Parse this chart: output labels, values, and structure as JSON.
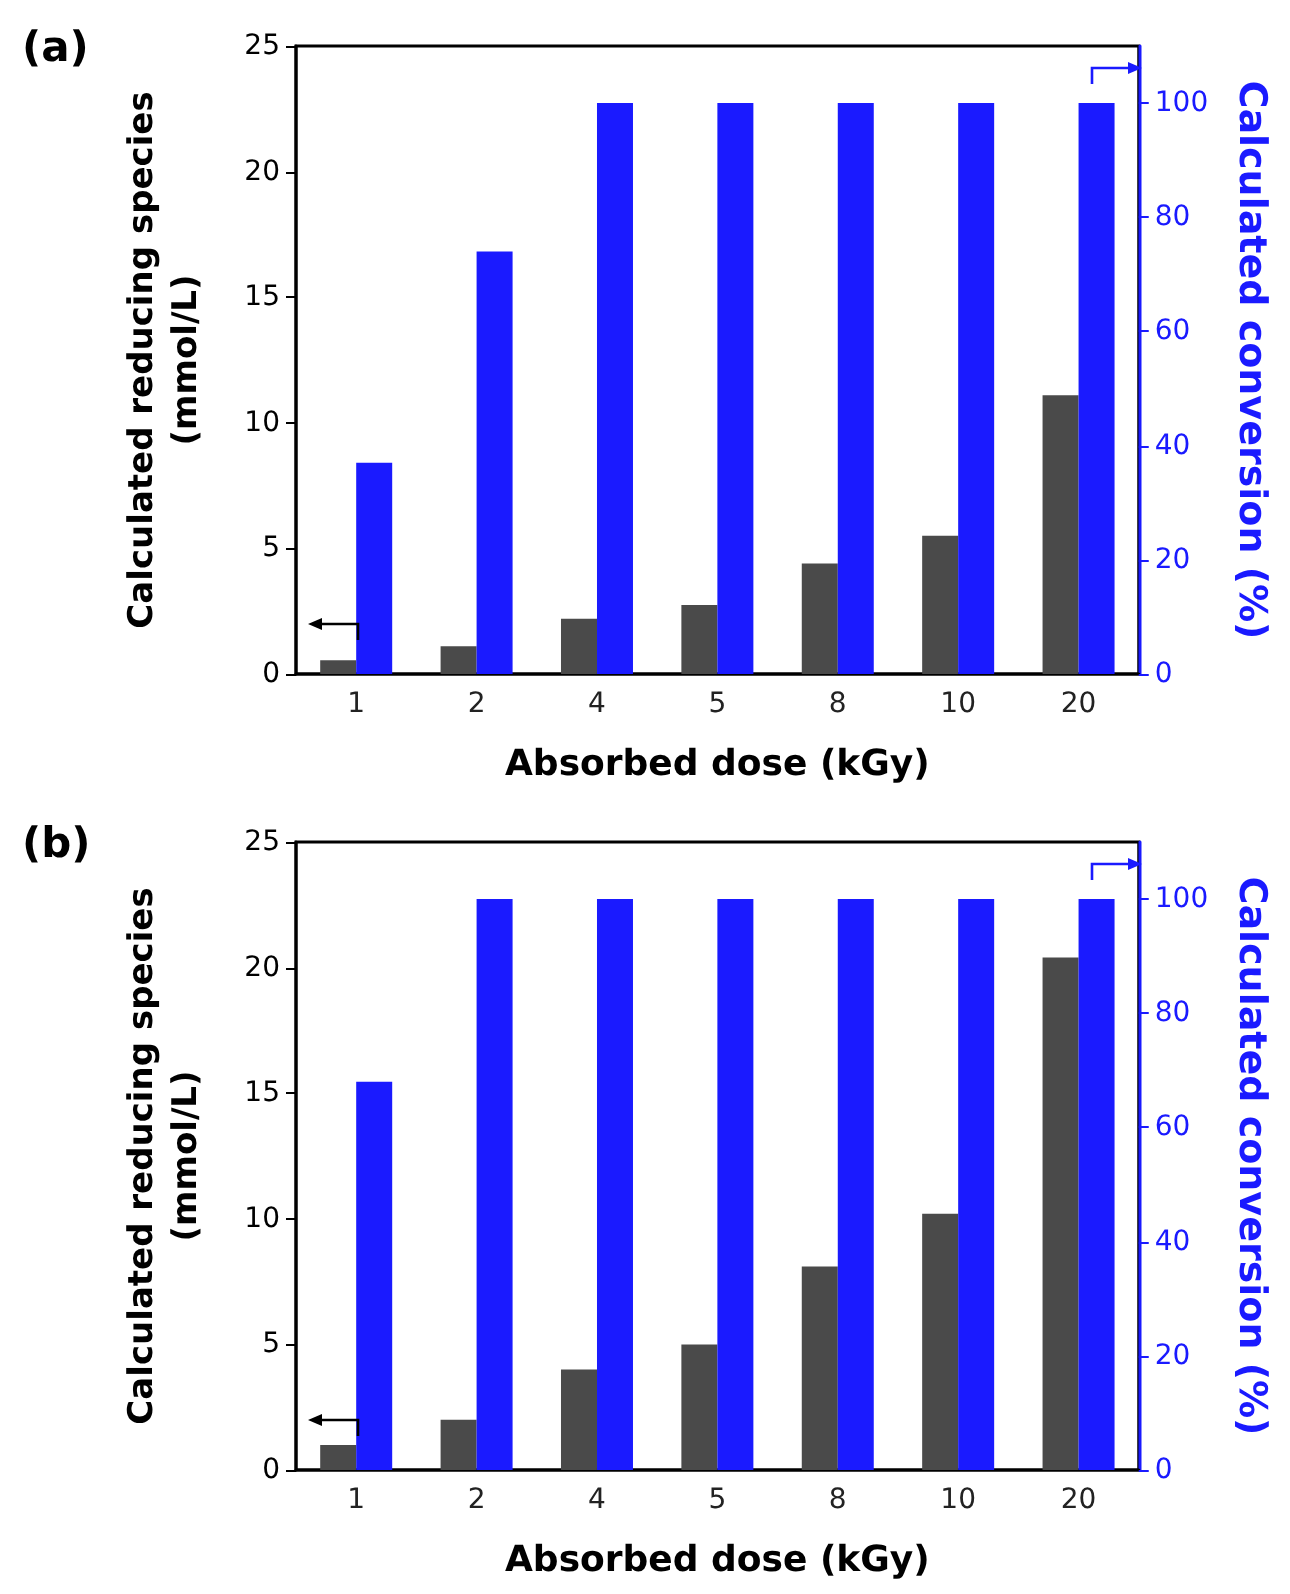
{
  "chart_data": [
    {
      "type": "bar",
      "title": "(a)",
      "xlabel": "Absorbed dose (kGy)",
      "ylabel": "Calculated reducing species\n(mmol/L)",
      "y2label": "Calculated conversion (%)",
      "categories": [
        "1",
        "2",
        "4",
        "5",
        "8",
        "10",
        "20"
      ],
      "series": [
        {
          "color": "#4a4a4a",
          "values": [
            0.55,
            1.1,
            2.2,
            2.75,
            4.4,
            5.5,
            11.1
          ]
        },
        {
          "color": "#1a1aff",
          "values": [
            37,
            74,
            100,
            100,
            100,
            100,
            100
          ],
          "axis": "y2"
        }
      ],
      "ylim": [
        0,
        25
      ],
      "yticks": [
        0,
        5,
        10,
        15,
        20,
        25
      ],
      "y2lim": [
        0,
        110
      ],
      "y2ticks": [
        0,
        20,
        40,
        60,
        80,
        100
      ]
    },
    {
      "type": "bar",
      "title": "(b)",
      "xlabel": "Absorbed dose (kGy)",
      "ylabel": "Calculated reducing species\n(mmol/L)",
      "y2label": "Calculated conversion (%)",
      "categories": [
        "1",
        "2",
        "4",
        "5",
        "8",
        "10",
        "20"
      ],
      "series": [
        {
          "color": "#4a4a4a",
          "values": [
            1.0,
            2.0,
            4.0,
            5.0,
            8.1,
            10.2,
            20.4
          ]
        },
        {
          "color": "#1a1aff",
          "values": [
            68,
            100,
            100,
            100,
            100,
            100,
            100
          ],
          "axis": "y2"
        }
      ],
      "ylim": [
        0,
        25
      ],
      "yticks": [
        0,
        5,
        10,
        15,
        20,
        25
      ],
      "y2lim": [
        0,
        110
      ],
      "y2ticks": [
        0,
        20,
        40,
        60,
        80,
        100
      ]
    }
  ]
}
